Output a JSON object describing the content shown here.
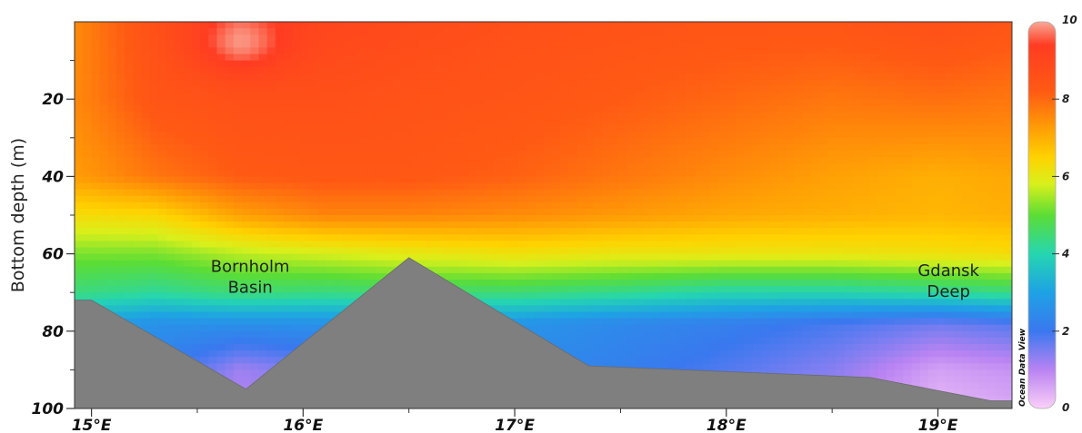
{
  "chart_data": {
    "type": "heatmap",
    "ylabel": "Bottom depth (m)",
    "x_axis": {
      "range": [
        14.92,
        19.35
      ],
      "ticks": [
        15,
        16,
        17,
        18,
        19
      ],
      "tick_labels": [
        "15°E",
        "16°E",
        "17°E",
        "18°E",
        "19°E"
      ]
    },
    "y_axis": {
      "range": [
        0,
        100
      ],
      "inverted": true,
      "ticks": [
        20,
        40,
        60,
        80,
        100
      ],
      "tick_labels": [
        "20",
        "40",
        "60",
        "80",
        "100"
      ]
    },
    "colorbar": {
      "range": [
        0,
        10
      ],
      "tick_labels": [
        "0",
        "2",
        "4",
        "6",
        "8",
        "10"
      ],
      "stops": [
        {
          "value": 0,
          "color": "#fad0f8"
        },
        {
          "value": 1,
          "color": "#b983f2"
        },
        {
          "value": 2,
          "color": "#3a78ef"
        },
        {
          "value": 3,
          "color": "#1ea2e4"
        },
        {
          "value": 4,
          "color": "#25d6b0"
        },
        {
          "value": 5,
          "color": "#5cdd35"
        },
        {
          "value": 5.8,
          "color": "#d8f01c"
        },
        {
          "value": 6.5,
          "color": "#ffd200"
        },
        {
          "value": 7.3,
          "color": "#ff9a06"
        },
        {
          "value": 8.2,
          "color": "#ff5a14"
        },
        {
          "value": 9.4,
          "color": "#ff3c22"
        },
        {
          "value": 10,
          "color": "#f8a896"
        }
      ]
    },
    "profiles": [
      {
        "lon": 14.95,
        "depths": [
          0,
          20,
          40,
          50,
          60,
          70,
          78,
          90,
          100
        ],
        "values": [
          7.6,
          7.6,
          7.3,
          6.3,
          5.2,
          4.4,
          3.0,
          2.6,
          2.4
        ]
      },
      {
        "lon": 15.3,
        "depths": [
          0,
          20,
          40,
          50,
          60,
          70,
          78,
          90,
          100
        ],
        "values": [
          8.6,
          8.4,
          7.8,
          6.4,
          5.2,
          4.2,
          2.6,
          2.2,
          2.0
        ]
      },
      {
        "lon": 15.7,
        "depths": [
          0,
          20,
          40,
          50,
          60,
          70,
          78,
          90,
          100
        ],
        "values": [
          9.3,
          8.6,
          8.2,
          7.2,
          5.6,
          4.5,
          2.6,
          1.2,
          1.0
        ]
      },
      {
        "lon": 16.1,
        "depths": [
          0,
          20,
          40,
          50,
          60,
          70,
          78,
          90,
          100
        ],
        "values": [
          9.0,
          8.6,
          8.3,
          7.6,
          5.8,
          4.4,
          2.6,
          1.6,
          1.4
        ]
      },
      {
        "lon": 16.5,
        "depths": [
          0,
          20,
          40,
          50,
          60,
          70,
          78,
          90,
          100
        ],
        "values": [
          8.8,
          8.5,
          8.3,
          7.6,
          6.0,
          4.5,
          2.7,
          2.2,
          2.0
        ]
      },
      {
        "lon": 17.0,
        "depths": [
          0,
          20,
          40,
          50,
          60,
          70,
          78,
          90,
          100
        ],
        "values": [
          8.6,
          8.4,
          8.1,
          7.5,
          6.2,
          4.5,
          2.7,
          2.4,
          2.2
        ]
      },
      {
        "lon": 17.5,
        "depths": [
          0,
          20,
          40,
          50,
          60,
          70,
          78,
          90,
          100
        ],
        "values": [
          8.5,
          8.2,
          7.8,
          7.3,
          6.1,
          4.3,
          2.4,
          2.2,
          2.0
        ]
      },
      {
        "lon": 18.0,
        "depths": [
          0,
          20,
          40,
          50,
          60,
          70,
          78,
          90,
          100
        ],
        "values": [
          8.4,
          8.0,
          7.5,
          7.1,
          6.1,
          4.0,
          2.2,
          1.8,
          1.6
        ]
      },
      {
        "lon": 18.5,
        "depths": [
          0,
          20,
          40,
          50,
          60,
          70,
          78,
          90,
          100
        ],
        "values": [
          8.4,
          7.8,
          7.2,
          7.0,
          6.1,
          4.0,
          1.9,
          1.4,
          1.2
        ]
      },
      {
        "lon": 19.0,
        "depths": [
          0,
          20,
          40,
          50,
          60,
          70,
          78,
          90,
          100
        ],
        "values": [
          8.6,
          7.9,
          7.0,
          6.9,
          6.2,
          4.2,
          1.6,
          0.6,
          0.3
        ]
      },
      {
        "lon": 19.35,
        "depths": [
          0,
          20,
          40,
          50,
          60,
          70,
          78,
          90,
          100
        ],
        "values": [
          8.4,
          7.8,
          7.1,
          7.0,
          6.3,
          4.4,
          1.8,
          0.8,
          0.5
        ]
      }
    ],
    "bathymetry": {
      "lon": [
        14.92,
        15.0,
        15.73,
        16.5,
        17.35,
        18.68,
        19.25,
        19.35
      ],
      "depth": [
        72,
        72,
        95,
        61,
        89,
        92,
        98,
        98
      ]
    },
    "annotations": [
      {
        "lines": [
          "Bornholm",
          "Basin"
        ],
        "lon": 15.75,
        "depth": 66
      },
      {
        "lines": [
          "Gdansk",
          "Deep"
        ],
        "lon": 19.05,
        "depth": 67
      }
    ],
    "watermark": "Ocean Data View"
  }
}
